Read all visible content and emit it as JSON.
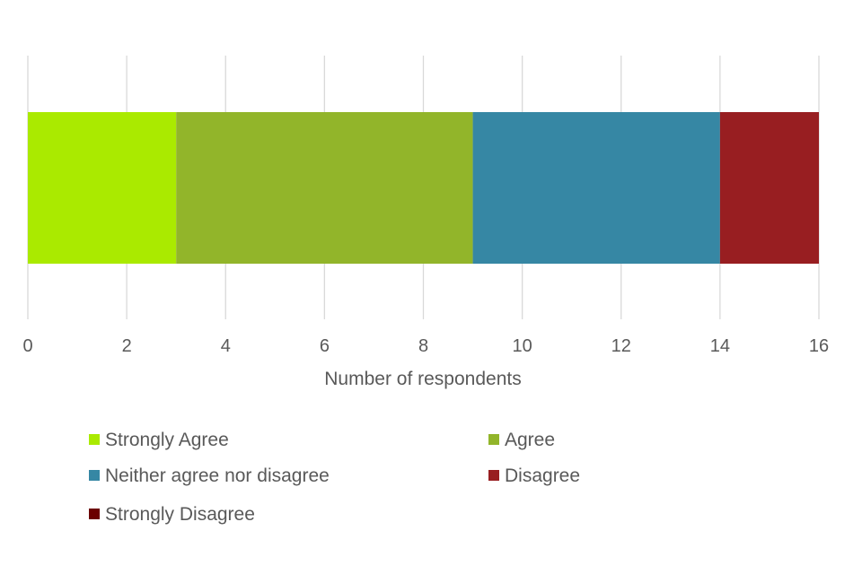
{
  "chart_data": {
    "type": "bar",
    "orientation": "horizontal",
    "stacked": true,
    "xlabel": "Number of respondents",
    "xlim": [
      0,
      16
    ],
    "x_ticks": [
      0,
      2,
      4,
      6,
      8,
      10,
      12,
      14,
      16
    ],
    "grid": true,
    "legend_position": "bottom",
    "series": [
      {
        "name": "Strongly Agree",
        "value": 3,
        "color": "#aaea00"
      },
      {
        "name": "Agree",
        "value": 6,
        "color": "#92b52a"
      },
      {
        "name": "Neither agree nor disagree",
        "value": 5,
        "color": "#3687a4"
      },
      {
        "name": "Disagree",
        "value": 2,
        "color": "#981e21"
      },
      {
        "name": "Strongly Disagree",
        "value": 0,
        "color": "#6b0000"
      }
    ]
  }
}
